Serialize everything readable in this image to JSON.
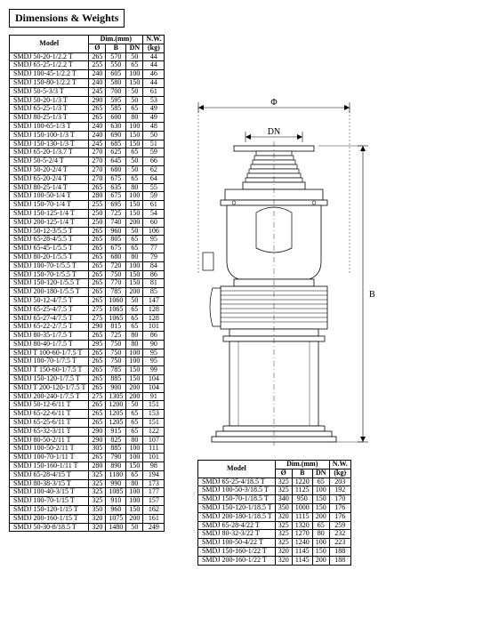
{
  "section_title": "Dimensions & Weights",
  "table_headers": {
    "model": "Model",
    "dim_group": "Dim.(mm)",
    "diam": "Ø",
    "b": "B",
    "dn": "DN",
    "nw": "N.W.",
    "kg": "(kg)"
  },
  "drawing_labels": {
    "phi": "Φ",
    "dn": "DN",
    "b": "B"
  },
  "left_rows": [
    {
      "m": "SMDJ 50-20-1/2.2 T",
      "d": "265",
      "b": "570",
      "dn": "50",
      "w": "44"
    },
    {
      "m": "SMDJ 65-25-1/2.2 T",
      "d": "255",
      "b": "550",
      "dn": "65",
      "w": "44"
    },
    {
      "m": "SMDJ 100-45-1/2.2 T",
      "d": "240",
      "b": "605",
      "dn": "100",
      "w": "46"
    },
    {
      "m": "SMDJ 150-80-1/2.2 T",
      "d": "240",
      "b": "580",
      "dn": "150",
      "w": "44"
    },
    {
      "m": "SMDJ 50-5-3/3 T",
      "d": "245",
      "b": "700",
      "dn": "50",
      "w": "61"
    },
    {
      "m": "SMDJ 50-20-1/3 T",
      "d": "290",
      "b": "595",
      "dn": "50",
      "w": "53"
    },
    {
      "m": "SMDJ 65-25-1/3 T",
      "d": "265",
      "b": "585",
      "dn": "65",
      "w": "49"
    },
    {
      "m": "SMDJ 80-25-1/3 T",
      "d": "265",
      "b": "600",
      "dn": "80",
      "w": "49"
    },
    {
      "m": "SMDJ 100-65-1/3 T",
      "d": "240",
      "b": "630",
      "dn": "100",
      "w": "48"
    },
    {
      "m": "SMDJ 150-100-1/3 T",
      "d": "240",
      "b": "690",
      "dn": "150",
      "w": "50"
    },
    {
      "m": "SMDJ 150-130-1/3 T",
      "d": "245",
      "b": "685",
      "dn": "150",
      "w": "51"
    },
    {
      "m": "SMDJ 65-20-1/3.7 T",
      "d": "270",
      "b": "625",
      "dn": "65",
      "w": "59"
    },
    {
      "m": "SMDJ 50-5-2/4 T",
      "d": "270",
      "b": "645",
      "dn": "50",
      "w": "66"
    },
    {
      "m": "SMDJ 50-20-2/4 T",
      "d": "270",
      "b": "680",
      "dn": "50",
      "w": "62"
    },
    {
      "m": "SMDJ 65-20-2/4 T",
      "d": "270",
      "b": "675",
      "dn": "65",
      "w": "64"
    },
    {
      "m": "SMDJ 80-25-1/4 T",
      "d": "265",
      "b": "635",
      "dn": "80",
      "w": "55"
    },
    {
      "m": "SMDJ 100-50-1/4 T",
      "d": "280",
      "b": "675",
      "dn": "100",
      "w": "59"
    },
    {
      "m": "SMDJ 150-70-1/4 T",
      "d": "255",
      "b": "695",
      "dn": "150",
      "w": "61"
    },
    {
      "m": "SMDJ 150-125-1/4 T",
      "d": "250",
      "b": "725",
      "dn": "150",
      "w": "54"
    },
    {
      "m": "SMDJ 200-125-1/4 T",
      "d": "250",
      "b": "740",
      "dn": "200",
      "w": "60"
    },
    {
      "m": "SMDJ 50-12-3/5.5 T",
      "d": "265",
      "b": "960",
      "dn": "50",
      "w": "106"
    },
    {
      "m": "SMDJ 65-28-4/5.5 T",
      "d": "265",
      "b": "805",
      "dn": "65",
      "w": "95"
    },
    {
      "m": "SMDJ 65-45-1/5.5 T",
      "d": "265",
      "b": "675",
      "dn": "65",
      "w": "77"
    },
    {
      "m": "SMDJ 80-20-1/5.5 T",
      "d": "265",
      "b": "680",
      "dn": "80",
      "w": "79"
    },
    {
      "m": "SMDJ 100-70-1/5.5 T",
      "d": "265",
      "b": "720",
      "dn": "100",
      "w": "84"
    },
    {
      "m": "SMDJ 150-70-1/5.5 T",
      "d": "265",
      "b": "750",
      "dn": "150",
      "w": "86"
    },
    {
      "m": "SMDJ 150-120-1/5.5 T",
      "d": "265",
      "b": "770",
      "dn": "150",
      "w": "81"
    },
    {
      "m": "SMDJ 200-180-1/5.5 T",
      "d": "265",
      "b": "785",
      "dn": "200",
      "w": "85"
    },
    {
      "m": "SMDJ 50-12-4/7.5 T",
      "d": "265",
      "b": "1060",
      "dn": "50",
      "w": "147"
    },
    {
      "m": "SMDJ 65-25-4/7.5 T",
      "d": "275",
      "b": "1065",
      "dn": "65",
      "w": "128"
    },
    {
      "m": "SMDJ 65-27-4/7.5 T",
      "d": "275",
      "b": "1065",
      "dn": "65",
      "w": "128"
    },
    {
      "m": "SMDJ 65-22-2/7.5 T",
      "d": "290",
      "b": "815",
      "dn": "65",
      "w": "101"
    },
    {
      "m": "SMDJ 80-35-1/7.5 T",
      "d": "265",
      "b": "725",
      "dn": "80",
      "w": "86"
    },
    {
      "m": "SMDJ 80-40-1/7.5 T",
      "d": "295",
      "b": "750",
      "dn": "80",
      "w": "90"
    },
    {
      "m": "SMDJ T 100-60-1/7.5 T",
      "d": "265",
      "b": "750",
      "dn": "100",
      "w": "95"
    },
    {
      "m": "SMDJ 100-70-1/7.5 T",
      "d": "265",
      "b": "750",
      "dn": "100",
      "w": "95"
    },
    {
      "m": "SMDJ T 150-60-1/7.5 T",
      "d": "265",
      "b": "785",
      "dn": "150",
      "w": "99"
    },
    {
      "m": "SMDJ 150-120-1/7.5 T",
      "d": "265",
      "b": "885",
      "dn": "150",
      "w": "104"
    },
    {
      "m": "SMDJ T 200-120-1/7.5 T",
      "d": "265",
      "b": "900",
      "dn": "200",
      "w": "104"
    },
    {
      "m": "SMDJ 200-240-1/7.5 T",
      "d": "275",
      "b": "1305",
      "dn": "200",
      "w": "91"
    },
    {
      "m": "SMDJ 50-12-6/11 T",
      "d": "265",
      "b": "1200",
      "dn": "50",
      "w": "151"
    },
    {
      "m": "SMDJ 65-22-6/11 T",
      "d": "265",
      "b": "1205",
      "dn": "65",
      "w": "153"
    },
    {
      "m": "SMDJ 65-25-6/11 T",
      "d": "265",
      "b": "1205",
      "dn": "65",
      "w": "151"
    },
    {
      "m": "SMDJ 65-32-3/11 T",
      "d": "290",
      "b": "915",
      "dn": "65",
      "w": "122"
    },
    {
      "m": "SMDJ 80-50-2/11 T",
      "d": "290",
      "b": "825",
      "dn": "80",
      "w": "107"
    },
    {
      "m": "SMDJ 100-50-2/11 T",
      "d": "305",
      "b": "885",
      "dn": "100",
      "w": "111"
    },
    {
      "m": "SMDJ 100-70-1/11 T",
      "d": "265",
      "b": "790",
      "dn": "100",
      "w": "101"
    },
    {
      "m": "SMDJ 150-160-1/11 T",
      "d": "280",
      "b": "890",
      "dn": "150",
      "w": "98"
    },
    {
      "m": "SMDJ 65-28-4/15 T",
      "d": "325",
      "b": "1180",
      "dn": "65",
      "w": "194"
    },
    {
      "m": "SMDJ 80-38-3/15 T",
      "d": "325",
      "b": "990",
      "dn": "80",
      "w": "173"
    },
    {
      "m": "SMDJ 100-40-3/15 T",
      "d": "325",
      "b": "1085",
      "dn": "100",
      "w": "177"
    },
    {
      "m": "SMDJ 100-70-1/15 T",
      "d": "325",
      "b": "910",
      "dn": "100",
      "w": "157"
    },
    {
      "m": "SMDJ 150-120-1/15 T",
      "d": "350",
      "b": "960",
      "dn": "150",
      "w": "162"
    },
    {
      "m": "SMDJ 200-160-1/15 T",
      "d": "320",
      "b": "1075",
      "dn": "200",
      "w": "161"
    },
    {
      "m": "SMDJ 50-30-8/18.5 T",
      "d": "320",
      "b": "1480",
      "dn": "50",
      "w": "249"
    }
  ],
  "right_rows": [
    {
      "m": "SMDJ 65-25-4/18.5 T",
      "d": "325",
      "b": "1220",
      "dn": "65",
      "w": "203"
    },
    {
      "m": "SMDJ 100-50-3/18.5 T",
      "d": "325",
      "b": "1125",
      "dn": "100",
      "w": "192"
    },
    {
      "m": "SMDJ 150-70-1/18.5 T",
      "d": "340",
      "b": "950",
      "dn": "150",
      "w": "170"
    },
    {
      "m": "SMDJ 150-120-1/18.5 T",
      "d": "350",
      "b": "1000",
      "dn": "150",
      "w": "176"
    },
    {
      "m": "SMDJ 200-180-1/18.5 T",
      "d": "320",
      "b": "1115",
      "dn": "200",
      "w": "176"
    },
    {
      "m": "SMDJ 65-28-4/22 T",
      "d": "325",
      "b": "1320",
      "dn": "65",
      "w": "259"
    },
    {
      "m": "SMDJ 80-32-3/22 T",
      "d": "325",
      "b": "1270",
      "dn": "80",
      "w": "232"
    },
    {
      "m": "SMDJ 100-50-4/22 T",
      "d": "325",
      "b": "1240",
      "dn": "100",
      "w": "223"
    },
    {
      "m": "SMDJ 150-160-1/22 T",
      "d": "320",
      "b": "1145",
      "dn": "150",
      "w": "188"
    },
    {
      "m": "SMDJ 200-160-1/22 T",
      "d": "320",
      "b": "1145",
      "dn": "200",
      "w": "188"
    }
  ]
}
